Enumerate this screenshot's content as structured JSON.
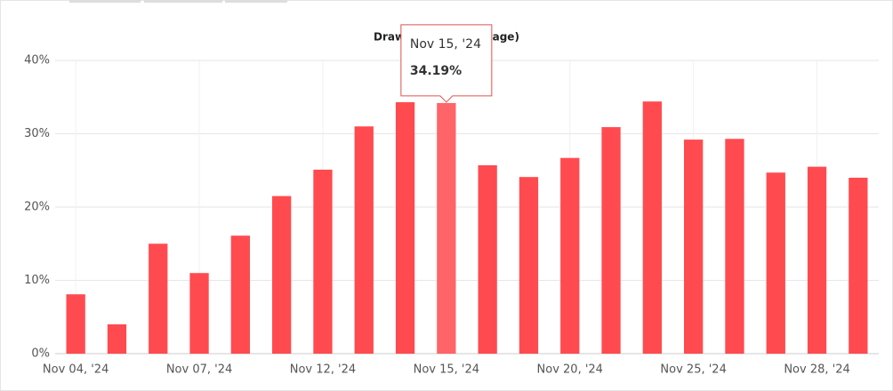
{
  "chart_data": {
    "type": "bar",
    "title": "Drawdown (Percentage)",
    "categories": [
      "Nov 04, '24",
      null,
      null,
      "Nov 07, '24",
      null,
      null,
      "Nov 12, '24",
      null,
      null,
      "Nov 15, '24",
      null,
      null,
      "Nov 20, '24",
      null,
      null,
      "Nov 25, '24",
      null,
      null,
      "Nov 28, '24",
      null
    ],
    "values": [
      8.1,
      4.0,
      15.0,
      11.0,
      16.1,
      21.5,
      25.1,
      31.0,
      34.3,
      34.19,
      25.7,
      24.1,
      26.7,
      30.9,
      34.4,
      29.2,
      29.3,
      24.7,
      25.5,
      24.0
    ],
    "color": "#ff4b4f",
    "highlight_color": "#ff6468",
    "ylim": [
      0,
      40
    ],
    "yticks": [
      {
        "value": 0,
        "label": "0%"
      },
      {
        "value": 10,
        "label": "10%"
      },
      {
        "value": 20,
        "label": "20%"
      },
      {
        "value": 30,
        "label": "30%"
      },
      {
        "value": 40,
        "label": "40%"
      }
    ],
    "grid": true,
    "tooltip": {
      "category_index": 9,
      "label": "34.19%"
    }
  }
}
